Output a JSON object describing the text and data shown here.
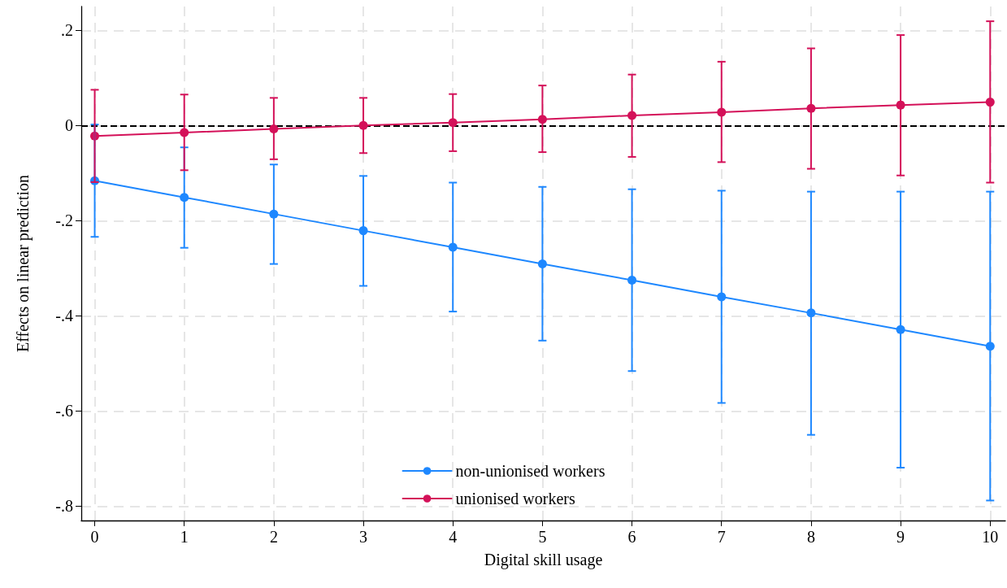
{
  "chart_data": {
    "type": "line",
    "xlabel": "Digital skill usage",
    "ylabel": "Effects on linear prediction",
    "x": [
      0,
      1,
      2,
      3,
      4,
      5,
      6,
      7,
      8,
      9,
      10
    ],
    "series": [
      {
        "name": "non-unionised workers",
        "color": "#1e88ff",
        "values": [
          -0.116,
          -0.151,
          -0.186,
          -0.221,
          -0.256,
          -0.291,
          -0.325,
          -0.36,
          -0.394,
          -0.429,
          -0.464
        ],
        "errors": [
          [
            -0.234,
            0.002
          ],
          [
            -0.257,
            -0.046
          ],
          [
            -0.291,
            -0.082
          ],
          [
            -0.337,
            -0.106
          ],
          [
            -0.391,
            -0.12
          ],
          [
            -0.452,
            -0.129
          ],
          [
            -0.516,
            -0.134
          ],
          [
            -0.583,
            -0.137
          ],
          [
            -0.65,
            -0.139
          ],
          [
            -0.719,
            -0.139
          ],
          [
            -0.788,
            -0.139
          ]
        ]
      },
      {
        "name": "unionised workers",
        "color": "#d41159",
        "values": [
          -0.022,
          -0.015,
          -0.007,
          0,
          0.006,
          0.013,
          0.021,
          0.028,
          0.036,
          0.043,
          0.049
        ],
        "errors": [
          [
            -0.119,
            0.075
          ],
          [
            -0.094,
            0.065
          ],
          [
            -0.071,
            0.058
          ],
          [
            -0.058,
            0.058
          ],
          [
            -0.054,
            0.066
          ],
          [
            -0.056,
            0.084
          ],
          [
            -0.066,
            0.107
          ],
          [
            -0.077,
            0.134
          ],
          [
            -0.091,
            0.162
          ],
          [
            -0.105,
            0.19
          ],
          [
            -0.12,
            0.219
          ]
        ]
      }
    ],
    "xlim": [
      -0.15,
      10.17
    ],
    "xticks": [
      0,
      1,
      2,
      3,
      4,
      5,
      6,
      7,
      8,
      9,
      10
    ],
    "ylim": [
      -0.83,
      0.25
    ],
    "yticks": [
      {
        "value": -0.8,
        "label": "-.8"
      },
      {
        "value": -0.6,
        "label": "-.6"
      },
      {
        "value": -0.4,
        "label": "-.4"
      },
      {
        "value": -0.2,
        "label": "-.2"
      },
      0,
      {
        "value": 0.2,
        "label": ".2"
      }
    ],
    "ref_lines": [
      {
        "axis": "y",
        "value": 0,
        "label": null,
        "color": "#000000",
        "line_style": "dashed"
      }
    ],
    "grid": true,
    "legend": "bottom",
    "marker": "circle",
    "line_style": "solid"
  }
}
